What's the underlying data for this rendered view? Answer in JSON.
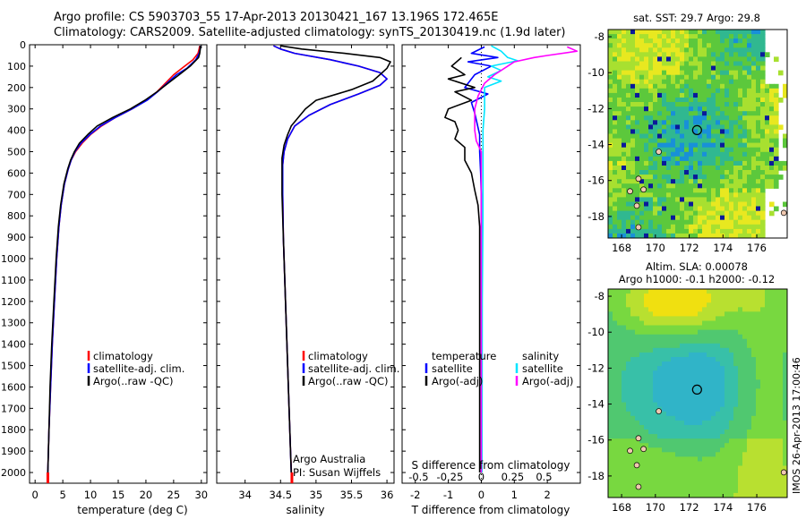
{
  "header": {
    "line1": "Argo profile: CS 5903703_55 17-Apr-2013 20130421_167 13.196S 172.465E",
    "line2": "Climatology: CARS2009. Satellite-adjusted climatology: synTS_20130419.nc (1.9d later)"
  },
  "side_label": "IMOS 26-Apr-2013 17:00:46",
  "colors": {
    "climatology": "#ff0000",
    "satellite": "#0000ff",
    "argo": "#000000",
    "sat_salinity": "#00e5ff",
    "argo_adj_salinity": "#ff00ff"
  },
  "chart_data": [
    {
      "type": "line",
      "id": "temperature",
      "xlabel": "temperature (deg C)",
      "xlim": [
        -1,
        31
      ],
      "xticks": [
        0,
        5,
        10,
        15,
        20,
        25,
        30
      ],
      "ylim": [
        0,
        2050
      ],
      "yticks": [
        0,
        100,
        200,
        300,
        400,
        500,
        600,
        700,
        800,
        900,
        1000,
        1100,
        1200,
        1300,
        1400,
        1500,
        1600,
        1700,
        1800,
        1900,
        2000
      ],
      "legend": [
        "climatology",
        "satellite-adj. clim.",
        "Argo(..raw -QC)"
      ],
      "series": [
        {
          "name": "climatology",
          "color": "#ff0000",
          "points": [
            [
              29.7,
              5
            ],
            [
              29.6,
              20
            ],
            [
              29.4,
              40
            ],
            [
              28.5,
              70
            ],
            [
              26.5,
              110
            ],
            [
              25.0,
              140
            ],
            [
              23.5,
              180
            ],
            [
              22.0,
              220
            ],
            [
              20.0,
              260
            ],
            [
              17.5,
              300
            ],
            [
              14.5,
              340
            ],
            [
              12.0,
              380
            ],
            [
              10.0,
              420
            ],
            [
              8.5,
              460
            ],
            [
              7.3,
              500
            ],
            [
              6.5,
              540
            ],
            [
              6.0,
              580
            ],
            [
              5.3,
              650
            ],
            [
              4.7,
              750
            ],
            [
              4.3,
              850
            ],
            [
              3.9,
              1000
            ],
            [
              3.5,
              1200
            ],
            [
              3.1,
              1400
            ],
            [
              2.8,
              1600
            ],
            [
              2.5,
              1800
            ],
            [
              2.3,
              2000
            ],
            [
              2.3,
              2050
            ]
          ]
        },
        {
          "name": "satellite-adj. clim.",
          "color": "#0000ff",
          "points": [
            [
              29.8,
              5
            ],
            [
              29.8,
              20
            ],
            [
              29.6,
              40
            ],
            [
              29.0,
              70
            ],
            [
              27.4,
              110
            ],
            [
              25.5,
              140
            ],
            [
              23.8,
              180
            ],
            [
              22.1,
              220
            ],
            [
              20.2,
              260
            ],
            [
              17.5,
              300
            ],
            [
              14.5,
              340
            ],
            [
              11.8,
              380
            ],
            [
              9.9,
              420
            ],
            [
              8.3,
              460
            ],
            [
              7.2,
              500
            ],
            [
              6.5,
              540
            ],
            [
              6.0,
              580
            ],
            [
              5.3,
              650
            ],
            [
              4.7,
              750
            ],
            [
              4.3,
              850
            ],
            [
              3.9,
              1000
            ],
            [
              3.5,
              1200
            ],
            [
              3.1,
              1400
            ],
            [
              2.8,
              1600
            ],
            [
              2.5,
              1800
            ],
            [
              2.3,
              2000
            ]
          ]
        },
        {
          "name": "Argo(..raw -QC)",
          "color": "#000000",
          "points": [
            [
              29.8,
              5
            ],
            [
              29.8,
              20
            ],
            [
              29.7,
              40
            ],
            [
              29.5,
              60
            ],
            [
              28.0,
              100
            ],
            [
              26.0,
              140
            ],
            [
              24.0,
              180
            ],
            [
              22.0,
              220
            ],
            [
              19.8,
              260
            ],
            [
              17.2,
              300
            ],
            [
              14.0,
              340
            ],
            [
              11.2,
              380
            ],
            [
              9.5,
              420
            ],
            [
              8.0,
              460
            ],
            [
              7.1,
              500
            ],
            [
              6.4,
              540
            ],
            [
              5.9,
              580
            ],
            [
              5.2,
              650
            ],
            [
              4.6,
              750
            ],
            [
              4.2,
              850
            ],
            [
              3.8,
              1000
            ],
            [
              3.4,
              1200
            ],
            [
              3.0,
              1400
            ],
            [
              2.7,
              1600
            ],
            [
              2.5,
              1800
            ],
            [
              2.3,
              2000
            ]
          ]
        }
      ]
    },
    {
      "type": "line",
      "id": "salinity",
      "xlabel": "salinity",
      "xlim": [
        33.6,
        36.1
      ],
      "xticks": [
        34,
        34.5,
        35,
        35.5,
        36
      ],
      "ylim": [
        0,
        2050
      ],
      "legend": [
        "climatology",
        "satellite-adj. clim.",
        "Argo(..raw -QC)"
      ],
      "annotation": [
        "Argo Australia",
        "PI: Susan Wijffels"
      ],
      "series": [
        {
          "name": "climatology",
          "color": "#ff0000",
          "points": [
            [
              34.4,
              5
            ],
            [
              34.5,
              20
            ],
            [
              34.7,
              40
            ],
            [
              35.2,
              70
            ],
            [
              35.6,
              100
            ],
            [
              35.9,
              130
            ],
            [
              36.0,
              160
            ],
            [
              35.9,
              190
            ],
            [
              35.6,
              230
            ],
            [
              35.2,
              280
            ],
            [
              34.9,
              330
            ],
            [
              34.7,
              380
            ],
            [
              34.6,
              440
            ],
            [
              34.55,
              500
            ],
            [
              34.53,
              560
            ],
            [
              34.53,
              700
            ],
            [
              34.54,
              900
            ],
            [
              34.56,
              1100
            ],
            [
              34.58,
              1300
            ],
            [
              34.6,
              1500
            ],
            [
              34.62,
              1700
            ],
            [
              34.64,
              1900
            ],
            [
              34.66,
              2050
            ]
          ]
        },
        {
          "name": "satellite-adj. clim.",
          "color": "#0000ff",
          "points": [
            [
              34.4,
              5
            ],
            [
              34.5,
              20
            ],
            [
              34.7,
              40
            ],
            [
              35.2,
              70
            ],
            [
              35.6,
              100
            ],
            [
              35.9,
              130
            ],
            [
              36.0,
              160
            ],
            [
              35.9,
              190
            ],
            [
              35.6,
              230
            ],
            [
              35.2,
              280
            ],
            [
              34.9,
              330
            ],
            [
              34.7,
              380
            ],
            [
              34.6,
              440
            ],
            [
              34.55,
              500
            ],
            [
              34.53,
              560
            ],
            [
              34.53,
              700
            ],
            [
              34.54,
              900
            ],
            [
              34.56,
              1100
            ],
            [
              34.58,
              1300
            ],
            [
              34.6,
              1500
            ],
            [
              34.62,
              1700
            ],
            [
              34.64,
              1900
            ],
            [
              34.65,
              2000
            ]
          ]
        },
        {
          "name": "Argo(..raw -QC)",
          "color": "#000000",
          "points": [
            [
              34.5,
              5
            ],
            [
              34.8,
              20
            ],
            [
              35.4,
              40
            ],
            [
              35.9,
              60
            ],
            [
              36.05,
              80
            ],
            [
              36.0,
              110
            ],
            [
              35.9,
              140
            ],
            [
              35.8,
              170
            ],
            [
              35.5,
              210
            ],
            [
              35.0,
              260
            ],
            [
              34.85,
              300
            ],
            [
              34.75,
              340
            ],
            [
              34.65,
              380
            ],
            [
              34.6,
              420
            ],
            [
              34.55,
              470
            ],
            [
              34.52,
              530
            ],
            [
              34.52,
              600
            ],
            [
              34.52,
              700
            ],
            [
              34.54,
              900
            ],
            [
              34.56,
              1100
            ],
            [
              34.58,
              1300
            ],
            [
              34.6,
              1500
            ],
            [
              34.62,
              1700
            ],
            [
              34.64,
              1900
            ],
            [
              34.65,
              2000
            ]
          ]
        }
      ]
    },
    {
      "type": "line",
      "id": "difference",
      "xlabel": "T difference from climatology",
      "xlabel_top": "S difference from climatology",
      "xlim": [
        -2.4,
        3.0
      ],
      "xticks": [
        -2,
        -1,
        0,
        1,
        2
      ],
      "xticks_salinity": [
        "-0.5",
        "-0.25",
        "0",
        "0.25",
        "0.5"
      ],
      "xticks_salinity_pos": [
        -1.9,
        -0.95,
        0,
        0.95,
        1.9
      ],
      "ylim": [
        0,
        2050
      ],
      "legend_temperature": [
        "temperature",
        "satellite",
        "Argo(-adj)"
      ],
      "legend_salinity": [
        "salinity",
        "satellite",
        "Argo(-adj)"
      ],
      "series": [
        {
          "name": "satellite",
          "color": "#0000ff",
          "points": [
            [
              0.1,
              10
            ],
            [
              -0.3,
              40
            ],
            [
              0.5,
              60
            ],
            [
              -0.4,
              80
            ],
            [
              0.3,
              100
            ],
            [
              -0.2,
              140
            ],
            [
              -0.5,
              200
            ],
            [
              0.2,
              230
            ],
            [
              -0.3,
              270
            ],
            [
              -0.2,
              320
            ],
            [
              -0.05,
              420
            ],
            [
              -0.05,
              500
            ],
            [
              -0.02,
              600
            ],
            [
              0,
              700
            ],
            [
              0,
              800
            ],
            [
              0,
              2000
            ]
          ]
        },
        {
          "name": "Argo(-adj)",
          "color": "#000000",
          "points": [
            [
              -0.6,
              60
            ],
            [
              -0.9,
              100
            ],
            [
              -0.5,
              140
            ],
            [
              -1.0,
              160
            ],
            [
              -0.2,
              200
            ],
            [
              -0.8,
              220
            ],
            [
              -0.3,
              260
            ],
            [
              -1.0,
              300
            ],
            [
              -1.1,
              340
            ],
            [
              -0.8,
              360
            ],
            [
              -0.7,
              400
            ],
            [
              -0.8,
              440
            ],
            [
              -0.5,
              480
            ],
            [
              -0.5,
              540
            ],
            [
              -0.3,
              600
            ],
            [
              -0.2,
              680
            ],
            [
              -0.1,
              750
            ],
            [
              -0.05,
              850
            ],
            [
              -0.05,
              1000
            ],
            [
              -0.05,
              1500
            ],
            [
              -0.05,
              2000
            ]
          ]
        },
        {
          "name": "satellite",
          "color": "#00e5ff",
          "points": [
            [
              0.3,
              5
            ],
            [
              0.6,
              30
            ],
            [
              0.8,
              60
            ],
            [
              1.1,
              75
            ],
            [
              0.3,
              100
            ],
            [
              0.6,
              120
            ],
            [
              0.2,
              150
            ],
            [
              0.6,
              170
            ],
            [
              0.1,
              200
            ],
            [
              0.1,
              300
            ],
            [
              0.05,
              400
            ],
            [
              0.05,
              600
            ],
            [
              0.05,
              800
            ],
            [
              0.03,
              1200
            ],
            [
              0.02,
              2000
            ]
          ]
        },
        {
          "name": "Argo(-adj)",
          "color": "#ff00ff",
          "points": [
            [
              2.6,
              10
            ],
            [
              2.9,
              30
            ],
            [
              2.0,
              50
            ],
            [
              1.6,
              60
            ],
            [
              1.0,
              80
            ],
            [
              0.8,
              100
            ],
            [
              0.4,
              140
            ],
            [
              0.1,
              180
            ],
            [
              -0.1,
              240
            ],
            [
              -0.2,
              300
            ],
            [
              -0.2,
              400
            ],
            [
              -0.15,
              450
            ],
            [
              0.0,
              500
            ],
            [
              0.0,
              600
            ],
            [
              0.0,
              800
            ],
            [
              0.0,
              2000
            ]
          ]
        }
      ]
    },
    {
      "type": "heatmap",
      "id": "sst-map",
      "title": "sat. SST: 29.7  Argo: 29.8",
      "xticks": [
        168,
        170,
        172,
        174,
        176
      ],
      "yticks": [
        -8,
        -10,
        -12,
        -14,
        -16,
        -18
      ],
      "xlim": [
        167.2,
        177.8
      ],
      "ylim": [
        -19.2,
        -7.6
      ]
    },
    {
      "type": "heatmap",
      "id": "sla-map",
      "title_line1": "Altim. SLA: 0.00078",
      "title_line2": "Argo h1000: -0.1  h2000: -0.12",
      "xticks": [
        168,
        170,
        172,
        174,
        176
      ],
      "yticks": [
        -8,
        -10,
        -12,
        -14,
        -16,
        -18
      ],
      "xlim": [
        167.2,
        177.8
      ],
      "ylim": [
        -19.2,
        -7.6
      ]
    }
  ]
}
